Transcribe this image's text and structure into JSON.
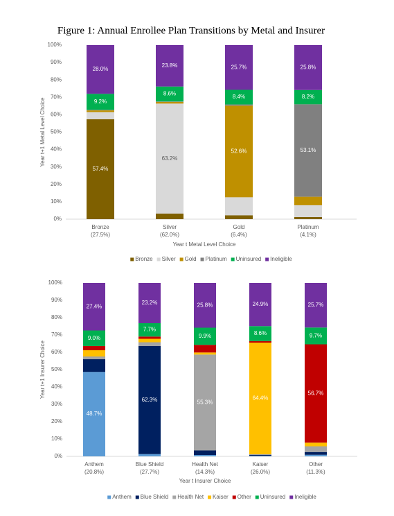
{
  "title": "Figure 1: Annual Enrollee Plan Transitions by Metal and Insurer",
  "chart_data": [
    {
      "type": "stacked_bar",
      "x_label": "Year t Metal Level Choice",
      "y_label": "Year t+1 Metal Level Choice",
      "categories": [
        "Bronze",
        "Silver",
        "Gold",
        "Platinum"
      ],
      "category_shares": [
        "(27.5%)",
        "(62.0%)",
        "(6.4%)",
        "(4.1%)"
      ],
      "ylim": [
        0,
        100
      ],
      "yticks": [
        {
          "value": 0,
          "label": "0%"
        },
        {
          "value": 10,
          "label": "10%"
        },
        {
          "value": 20,
          "label": "20%"
        },
        {
          "value": 30,
          "label": "30%"
        },
        {
          "value": 40,
          "label": "40%"
        },
        {
          "value": 50,
          "label": "50%"
        },
        {
          "value": 60,
          "label": "60%"
        },
        {
          "value": 70,
          "label": "70%"
        },
        {
          "value": 80,
          "label": "80%"
        },
        {
          "value": 90,
          "label": "90%"
        },
        {
          "value": 100,
          "label": "100%"
        }
      ],
      "legend": "bottom",
      "series": [
        {
          "name": "Bronze",
          "color": "#7f6000",
          "label_color": "#ffffff",
          "values": [
            57.4,
            3.2,
            2.2,
            1.2
          ],
          "value_labels": [
            "57.4%",
            null,
            null,
            null
          ]
        },
        {
          "name": "Silver",
          "color": "#d9d9d9",
          "label_color": "#595959",
          "values": [
            4.1,
            63.2,
            10.4,
            6.8
          ],
          "value_labels": [
            null,
            "63.2%",
            null,
            null
          ]
        },
        {
          "name": "Gold",
          "color": "#bf9000",
          "label_color": "#ffffff",
          "values": [
            1.0,
            1.0,
            52.6,
            4.9
          ],
          "value_labels": [
            null,
            null,
            "52.6%",
            null
          ]
        },
        {
          "name": "Platinum",
          "color": "#808080",
          "label_color": "#ffffff",
          "values": [
            0.3,
            0.2,
            0.7,
            53.1
          ],
          "value_labels": [
            null,
            null,
            null,
            "53.1%"
          ]
        },
        {
          "name": "Uninsured",
          "color": "#00b050",
          "label_color": "#ffffff",
          "values": [
            9.2,
            8.6,
            8.4,
            8.2
          ],
          "value_labels": [
            "9.2%",
            "8.6%",
            "8.4%",
            "8.2%"
          ]
        },
        {
          "name": "Ineligible",
          "color": "#7030a0",
          "label_color": "#ffffff",
          "values": [
            28.0,
            23.8,
            25.7,
            25.8
          ],
          "value_labels": [
            "28.0%",
            "23.8%",
            "25.7%",
            "25.8%"
          ]
        }
      ]
    },
    {
      "type": "stacked_bar",
      "x_label": "Year t Insurer Choice",
      "y_label": "Year t+1 Insurer Choice",
      "categories": [
        "Anthem",
        "Blue Shield",
        "Health Net",
        "Kaiser",
        "Other"
      ],
      "category_shares": [
        "(20.8%)",
        "(27.7%)",
        "(14.3%)",
        "(26.0%)",
        "(11.3%)"
      ],
      "ylim": [
        0,
        100
      ],
      "yticks": [
        {
          "value": 0,
          "label": "0%"
        },
        {
          "value": 10,
          "label": "10%"
        },
        {
          "value": 20,
          "label": "20%"
        },
        {
          "value": 30,
          "label": "30%"
        },
        {
          "value": 40,
          "label": "40%"
        },
        {
          "value": 50,
          "label": "50%"
        },
        {
          "value": 60,
          "label": "60%"
        },
        {
          "value": 70,
          "label": "70%"
        },
        {
          "value": 80,
          "label": "80%"
        },
        {
          "value": 90,
          "label": "90%"
        },
        {
          "value": 100,
          "label": "100%"
        }
      ],
      "legend": "bottom",
      "series": [
        {
          "name": "Anthem",
          "color": "#5b9bd5",
          "label_color": "#ffffff",
          "values": [
            48.7,
            1.3,
            0.8,
            0.3,
            0.9
          ],
          "value_labels": [
            "48.7%",
            null,
            null,
            null,
            null
          ]
        },
        {
          "name": "Blue Shield",
          "color": "#002060",
          "label_color": "#ffffff",
          "values": [
            7.3,
            62.3,
            2.6,
            0.6,
            1.6
          ],
          "value_labels": [
            null,
            "62.3%",
            null,
            null,
            null
          ]
        },
        {
          "name": "Health Net",
          "color": "#a5a5a5",
          "label_color": "#ffffff",
          "values": [
            1.6,
            2.2,
            55.3,
            0.3,
            3.3
          ],
          "value_labels": [
            null,
            null,
            "55.3%",
            null,
            null
          ]
        },
        {
          "name": "Kaiser",
          "color": "#ffc000",
          "label_color": "#ffffff",
          "values": [
            3.6,
            2.0,
            1.2,
            64.4,
            2.1
          ],
          "value_labels": [
            null,
            null,
            null,
            "64.4%",
            null
          ]
        },
        {
          "name": "Other",
          "color": "#c00000",
          "label_color": "#ffffff",
          "values": [
            2.4,
            1.3,
            4.4,
            0.9,
            56.7
          ],
          "value_labels": [
            null,
            null,
            null,
            null,
            "56.7%"
          ]
        },
        {
          "name": "Uninsured",
          "color": "#00b050",
          "label_color": "#ffffff",
          "values": [
            9.0,
            7.7,
            9.9,
            8.6,
            9.7
          ],
          "value_labels": [
            "9.0%",
            "7.7%",
            "9.9%",
            "8.6%",
            "9.7%"
          ]
        },
        {
          "name": "Ineligible",
          "color": "#7030a0",
          "label_color": "#ffffff",
          "values": [
            27.4,
            23.2,
            25.8,
            24.9,
            25.7
          ],
          "value_labels": [
            "27.4%",
            "23.2%",
            "25.8%",
            "24.9%",
            "25.7%"
          ]
        }
      ]
    }
  ]
}
